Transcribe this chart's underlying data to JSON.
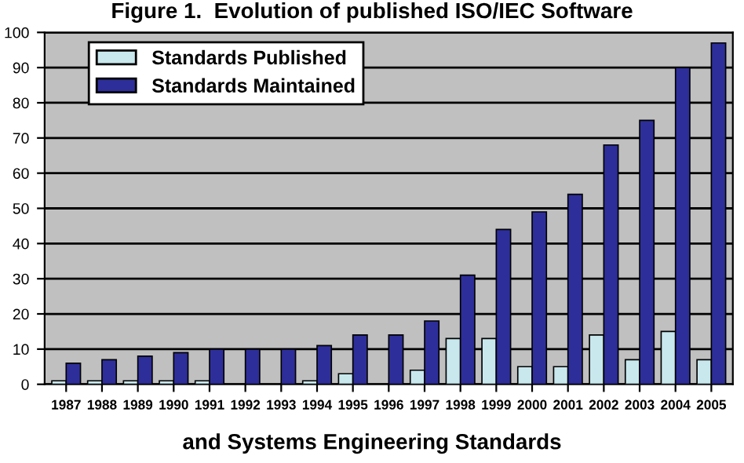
{
  "chart_data": {
    "type": "bar",
    "title": "Figure 1.  Evolution of published ISO/IEC Software",
    "annotations": [
      "and Systems Engineering Standards"
    ],
    "categories": [
      "1987",
      "1988",
      "1989",
      "1990",
      "1991",
      "1992",
      "1993",
      "1994",
      "1995",
      "1996",
      "1997",
      "1998",
      "1999",
      "2000",
      "2001",
      "2002",
      "2003",
      "2004",
      "2005"
    ],
    "series": [
      {
        "name": "Standards Published",
        "color": "#c8e8ee",
        "values": [
          1,
          1,
          1,
          1,
          1,
          0,
          0,
          1,
          3,
          0,
          4,
          13,
          13,
          5,
          5,
          14,
          7,
          15,
          7
        ]
      },
      {
        "name": "Standards Maintained",
        "color": "#2e2e9a",
        "values": [
          6,
          7,
          8,
          9,
          10,
          10,
          10,
          11,
          14,
          14,
          18,
          31,
          44,
          49,
          54,
          68,
          75,
          90,
          97
        ]
      }
    ],
    "ylim": [
      0,
      100
    ],
    "yticks": [
      0,
      10,
      20,
      30,
      40,
      50,
      60,
      70,
      80,
      90,
      100
    ],
    "grid": "y",
    "legend": "top left"
  }
}
